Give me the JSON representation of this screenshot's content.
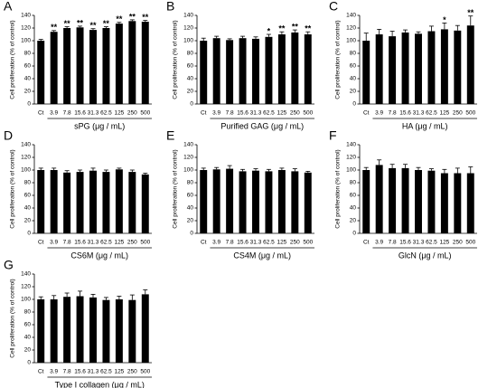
{
  "chart_data": [
    {
      "type": "bar",
      "panel": "A",
      "ylabel": "Cell proliferation (% of control)",
      "xlabel": "sPG (μg / mL)",
      "categories": [
        "Ct",
        "3.9",
        "7.8",
        "15.6",
        "31.3",
        "62.5",
        "125",
        "250",
        "500"
      ],
      "values": [
        100,
        114,
        120,
        121,
        117,
        120,
        127,
        131,
        130
      ],
      "errors": [
        2,
        2,
        2,
        2,
        2,
        2,
        2,
        2,
        2
      ],
      "significance": [
        null,
        "**",
        "**",
        "**",
        "**",
        "**",
        "**",
        "**",
        "**"
      ],
      "ylim": [
        0,
        140
      ],
      "yticks": [
        0,
        20,
        40,
        60,
        80,
        100,
        120,
        140
      ],
      "color": "#000000"
    },
    {
      "type": "bar",
      "panel": "B",
      "ylabel": "Cell proliferation (% of control)",
      "xlabel": "Purified GAG (μg / mL)",
      "categories": [
        "Ct",
        "3.9",
        "7.8",
        "15.6",
        "31.3",
        "62.5",
        "125",
        "250",
        "500"
      ],
      "values": [
        100,
        104,
        101,
        104,
        103,
        106,
        110,
        113,
        110
      ],
      "errors": [
        4,
        3,
        2,
        3,
        3,
        4,
        4,
        4,
        4
      ],
      "significance": [
        null,
        null,
        null,
        null,
        null,
        "*",
        "**",
        "**",
        "**"
      ],
      "ylim": [
        0,
        140
      ],
      "yticks": [
        0,
        20,
        40,
        60,
        80,
        100,
        120,
        140
      ],
      "color": "#000000"
    },
    {
      "type": "bar",
      "panel": "C",
      "ylabel": "Cell proliferation (% of control)",
      "xlabel": "HA (μg / mL)",
      "categories": [
        "Ct",
        "3.9",
        "7.8",
        "15.6",
        "31.3",
        "62.5",
        "125",
        "250",
        "500"
      ],
      "values": [
        100,
        110,
        107,
        113,
        111,
        115,
        118,
        116,
        124
      ],
      "errors": [
        12,
        8,
        8,
        4,
        3,
        8,
        10,
        8,
        15
      ],
      "significance": [
        null,
        null,
        null,
        null,
        null,
        null,
        "*",
        null,
        "**"
      ],
      "ylim": [
        0,
        140
      ],
      "yticks": [
        0,
        20,
        40,
        60,
        80,
        100,
        120,
        140
      ],
      "color": "#000000"
    },
    {
      "type": "bar",
      "panel": "D",
      "ylabel": "Cell proliferation (% of control)",
      "xlabel": "CS6M (μg / mL)",
      "categories": [
        "Ct",
        "3.9",
        "7.8",
        "15.6",
        "31.3",
        "62.5",
        "125",
        "250",
        "500"
      ],
      "values": [
        100,
        100,
        96,
        97,
        99,
        97,
        101,
        97,
        93
      ],
      "errors": [
        3,
        3,
        3,
        3,
        4,
        3,
        2,
        3,
        2
      ],
      "significance": [
        null,
        null,
        null,
        null,
        null,
        null,
        null,
        null,
        null
      ],
      "ylim": [
        0,
        140
      ],
      "yticks": [
        0,
        20,
        40,
        60,
        80,
        100,
        120,
        140
      ],
      "color": "#000000"
    },
    {
      "type": "bar",
      "panel": "E",
      "ylabel": "Cell proliferation (% of control)",
      "xlabel": "CS4M (μg / mL)",
      "categories": [
        "Ct",
        "3.9",
        "7.8",
        "15.6",
        "31.3",
        "62.5",
        "125",
        "250",
        "500"
      ],
      "values": [
        100,
        101,
        102,
        98,
        99,
        98,
        100,
        98,
        96
      ],
      "errors": [
        3,
        3,
        5,
        3,
        3,
        3,
        3,
        4,
        2
      ],
      "significance": [
        null,
        null,
        null,
        null,
        null,
        null,
        null,
        null,
        null
      ],
      "ylim": [
        0,
        140
      ],
      "yticks": [
        0,
        20,
        40,
        60,
        80,
        100,
        120,
        140
      ],
      "color": "#000000"
    },
    {
      "type": "bar",
      "panel": "F",
      "ylabel": "Cell proliferation (% of control)",
      "xlabel": "GlcN (μg / mL)",
      "categories": [
        "Ct",
        "3.9",
        "7.8",
        "15.6",
        "31.3",
        "62.5",
        "125",
        "250",
        "500"
      ],
      "values": [
        100,
        108,
        103,
        103,
        100,
        99,
        95,
        95,
        95
      ],
      "errors": [
        4,
        8,
        6,
        6,
        4,
        3,
        6,
        8,
        10
      ],
      "significance": [
        null,
        null,
        null,
        null,
        null,
        null,
        null,
        null,
        null
      ],
      "ylim": [
        0,
        140
      ],
      "yticks": [
        0,
        20,
        40,
        60,
        80,
        100,
        120,
        140
      ],
      "color": "#000000"
    },
    {
      "type": "bar",
      "panel": "G",
      "ylabel": "Cell proliferation (% of control)",
      "xlabel": "Type I collagen (μg / mL)",
      "categories": [
        "Ct",
        "3.9",
        "7.8",
        "15.6",
        "31.3",
        "62.5",
        "125",
        "250",
        "500"
      ],
      "values": [
        100,
        100,
        104,
        105,
        103,
        99,
        100,
        99,
        108
      ],
      "errors": [
        4,
        6,
        6,
        8,
        5,
        4,
        5,
        8,
        7
      ],
      "significance": [
        null,
        null,
        null,
        null,
        null,
        null,
        null,
        null,
        null
      ],
      "ylim": [
        0,
        140
      ],
      "yticks": [
        0,
        20,
        40,
        60,
        80,
        100,
        120,
        140
      ],
      "color": "#000000"
    }
  ]
}
